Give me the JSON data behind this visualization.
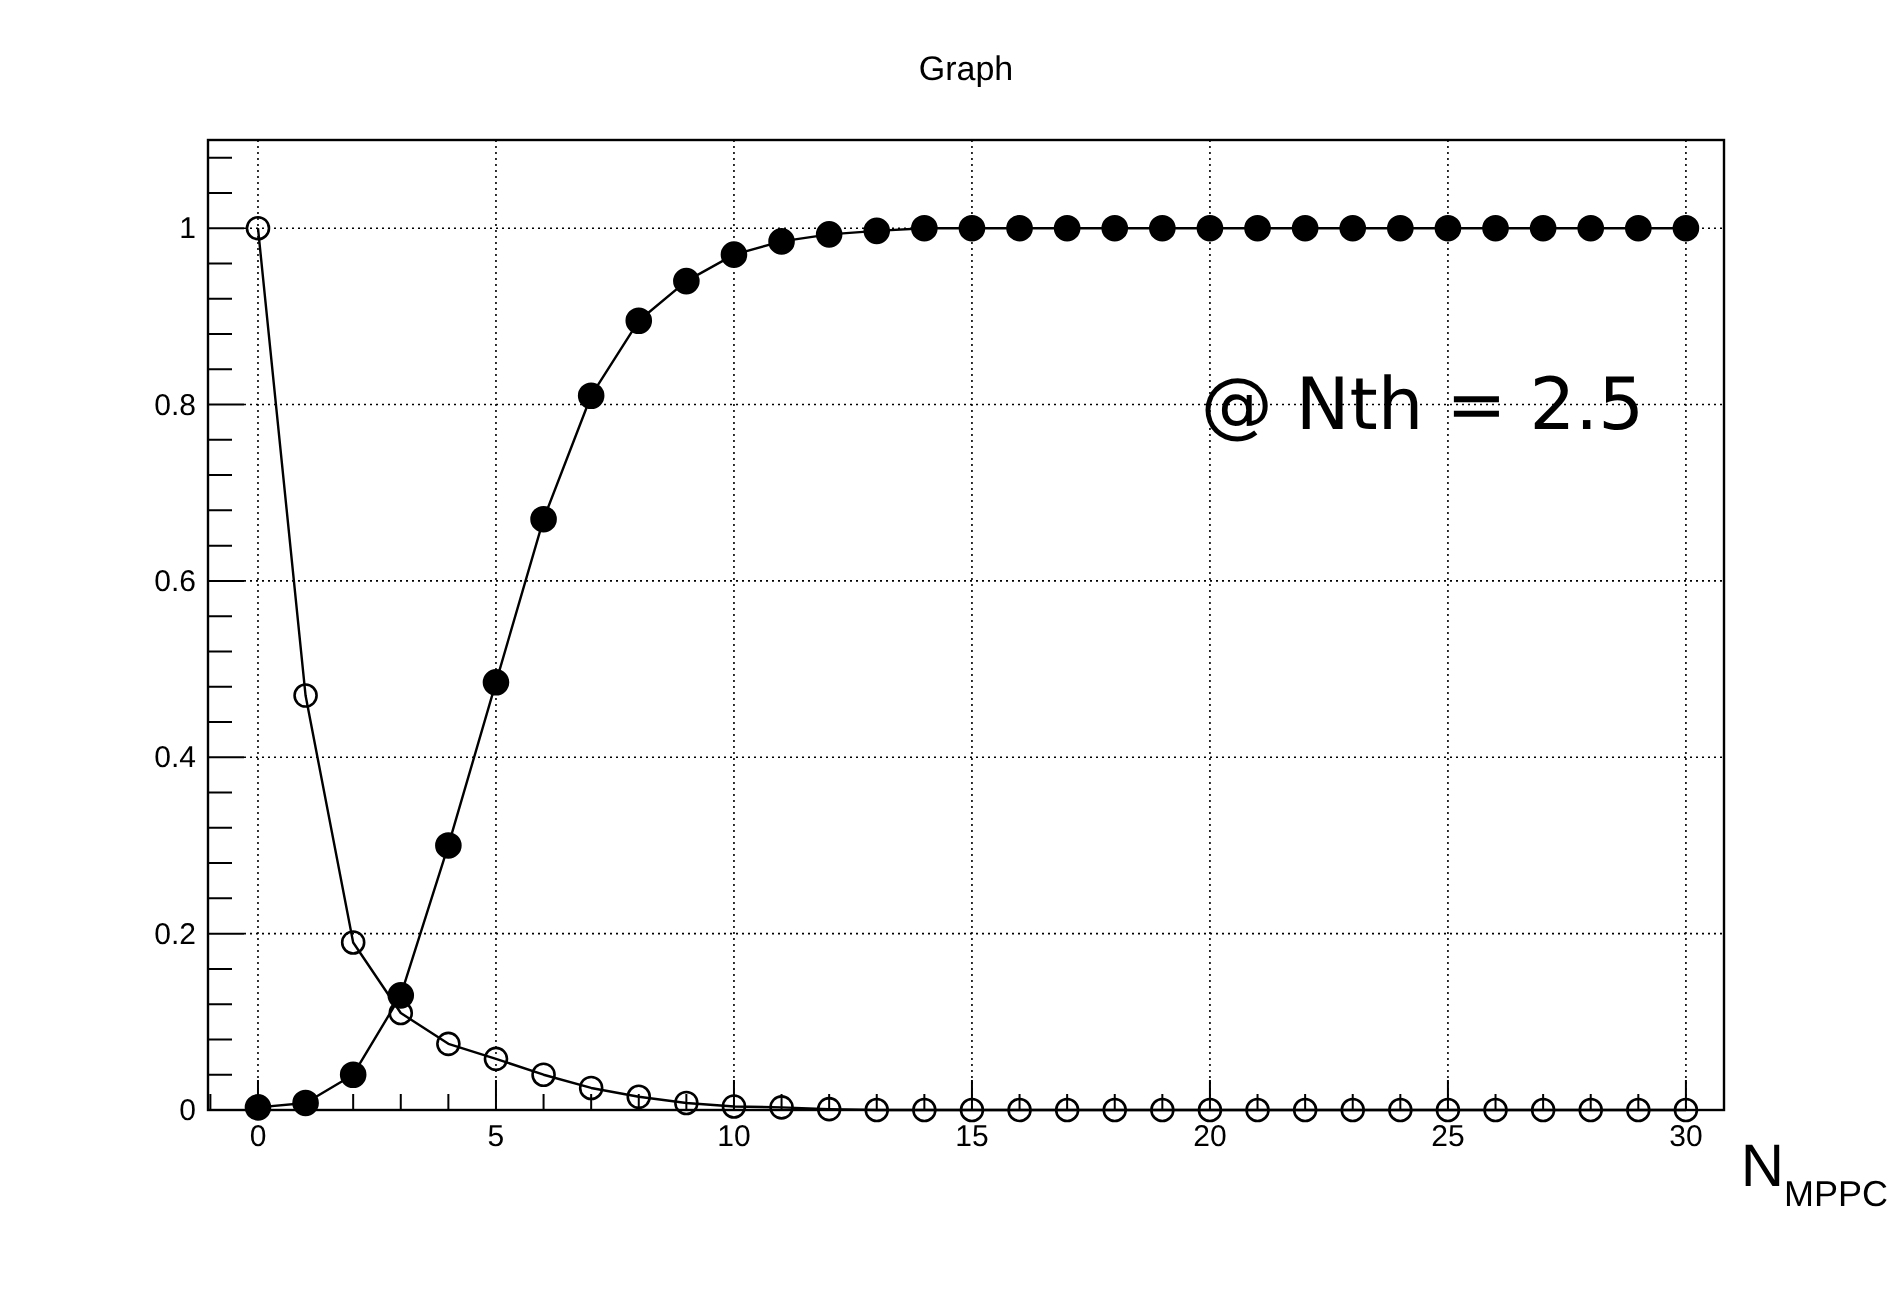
{
  "chart_data": {
    "type": "line",
    "title": "Graph",
    "xlabel": "N$_{MPPC}$",
    "x": [
      0,
      1,
      2,
      3,
      4,
      5,
      6,
      7,
      8,
      9,
      10,
      11,
      12,
      13,
      14,
      15,
      16,
      17,
      18,
      19,
      20,
      21,
      22,
      23,
      24,
      25,
      26,
      27,
      28,
      29,
      30
    ],
    "series": [
      {
        "color": "#000000",
        "values": [
          0.003,
          0.008,
          0.04,
          0.13,
          0.3,
          0.485,
          0.67,
          0.81,
          0.895,
          0.94,
          0.97,
          0.985,
          0.993,
          0.997,
          1.0,
          1.0,
          1.0,
          1.0,
          1.0,
          1.0,
          1.0,
          1.0,
          1.0,
          1.0,
          1.0,
          1.0,
          1.0,
          1.0,
          1.0,
          1.0,
          1.0
        ]
      },
      {
        "color": "#000000",
        "values": [
          1.0,
          0.47,
          0.19,
          0.11,
          0.075,
          0.058,
          0.04,
          0.025,
          0.015,
          0.008,
          0.004,
          0.003,
          0.001,
          0,
          0,
          0,
          0,
          0,
          0,
          0,
          0,
          0,
          0,
          0,
          0,
          0,
          0,
          0,
          0,
          0,
          0
        ]
      }
    ],
    "annotations": [
      "@ Nth = 2.5"
    ],
    "xlim": [
      -1.05,
      30.8
    ],
    "xticks": [
      0,
      5,
      10,
      15,
      20,
      25,
      30
    ],
    "ylim": [
      0,
      1.1
    ],
    "yticks": [
      0,
      0.2,
      0.4,
      0.6,
      0.8,
      1
    ],
    "grid": true,
    "marker": "circle",
    "line_style": "solid"
  }
}
